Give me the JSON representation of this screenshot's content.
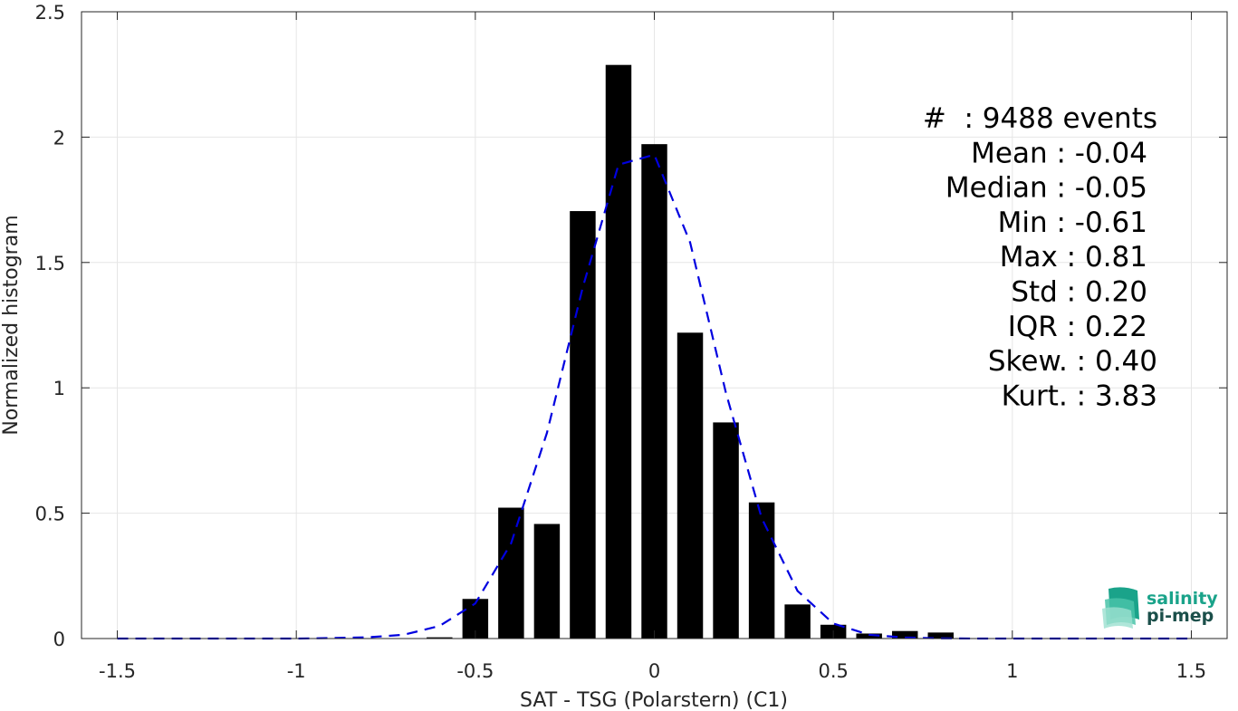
{
  "chart_data": {
    "type": "bar",
    "xlabel": "SAT - TSG (Polarstern) (C1)",
    "ylabel": "Normalized histogram",
    "xlim": [
      -1.6,
      1.6
    ],
    "ylim": [
      0,
      2.5
    ],
    "grid": true,
    "x_ticks": [
      -1.5,
      -1,
      -0.5,
      0,
      0.5,
      1,
      1.5
    ],
    "x_tick_labels": [
      "-1.5",
      "-1",
      "-0.5",
      "0",
      "0.5",
      "1",
      "1.5"
    ],
    "y_ticks": [
      0,
      0.5,
      1,
      1.5,
      2,
      2.5
    ],
    "y_tick_labels": [
      "0",
      "0.5",
      "1",
      "1.5",
      "2",
      "2.5"
    ],
    "bin_width": 0.1,
    "bars": {
      "centers": [
        -0.6,
        -0.5,
        -0.4,
        -0.3,
        -0.2,
        -0.1,
        0.0,
        0.1,
        0.2,
        0.3,
        0.4,
        0.5,
        0.6,
        0.7,
        0.8
      ],
      "values": [
        0.005,
        0.158,
        0.522,
        0.457,
        1.705,
        2.288,
        1.972,
        1.22,
        0.862,
        0.543,
        0.136,
        0.055,
        0.02,
        0.03,
        0.024
      ],
      "color": "#000000"
    },
    "fit_curve": {
      "style": "dashed",
      "color": "#0000e0",
      "x": [
        -1.5,
        -1.4,
        -1.3,
        -1.2,
        -1.1,
        -1.0,
        -0.9,
        -0.8,
        -0.7,
        -0.6,
        -0.5,
        -0.4,
        -0.3,
        -0.2,
        -0.1,
        0.0,
        0.1,
        0.2,
        0.3,
        0.4,
        0.5,
        0.6,
        0.7,
        0.8,
        0.9,
        1.0,
        1.1,
        1.2,
        1.3,
        1.4,
        1.5
      ],
      "y": [
        0,
        0,
        0,
        0,
        0,
        0,
        0.002,
        0.005,
        0.015,
        0.05,
        0.14,
        0.38,
        0.82,
        1.4,
        1.89,
        1.93,
        1.58,
        0.98,
        0.48,
        0.19,
        0.06,
        0.015,
        0.004,
        0.001,
        0,
        0,
        0,
        0,
        0,
        0,
        0
      ]
    },
    "stats": [
      "#  : 9488 events",
      "Mean : -0.04",
      "Median : -0.05",
      "Min : -0.61",
      "Max : 0.81",
      "Std : 0.20",
      "IQR : 0.22",
      "Skew. : 0.40",
      "Kurt. : 3.83"
    ]
  },
  "logo": {
    "line1": "salinity",
    "line2": "pi-mep",
    "color1": "#1aa38a",
    "color2": "#1b4f4a"
  }
}
